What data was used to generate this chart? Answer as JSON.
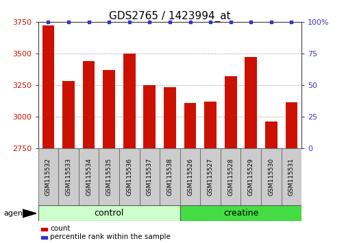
{
  "title": "GDS2765 / 1423994_at",
  "categories": [
    "GSM115532",
    "GSM115533",
    "GSM115534",
    "GSM115535",
    "GSM115536",
    "GSM115537",
    "GSM115538",
    "GSM115526",
    "GSM115527",
    "GSM115528",
    "GSM115529",
    "GSM115530",
    "GSM115531"
  ],
  "bar_values": [
    3720,
    3280,
    3440,
    3370,
    3500,
    3250,
    3235,
    3110,
    3120,
    3320,
    3470,
    2960,
    3115
  ],
  "percentile_values": [
    100,
    100,
    100,
    100,
    100,
    100,
    100,
    100,
    100,
    100,
    100,
    100,
    100
  ],
  "bar_color": "#cc1100",
  "percentile_color": "#3333cc",
  "ylim_left": [
    2750,
    3750
  ],
  "ylim_right": [
    0,
    100
  ],
  "yticks_left": [
    2750,
    3000,
    3250,
    3500,
    3750
  ],
  "yticks_right": [
    0,
    25,
    50,
    75,
    100
  ],
  "ytick_labels_right": [
    "0",
    "25",
    "50",
    "75",
    "100%"
  ],
  "control_color": "#ccffcc",
  "creatine_color": "#44dd44",
  "agent_label": "agent",
  "legend_count_label": "count",
  "legend_percentile_label": "percentile rank within the sample",
  "bar_color_legend": "#cc0000",
  "grid_color": "#888888",
  "title_fontsize": 11,
  "tick_fontsize": 8,
  "bar_width": 0.6,
  "n_control": 7,
  "n_creatine": 6
}
